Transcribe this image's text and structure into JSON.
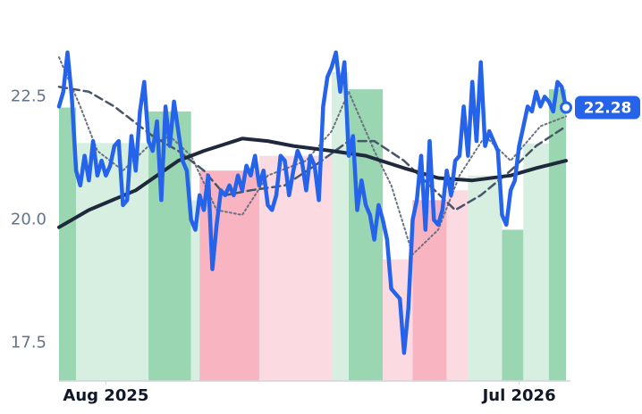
{
  "chart_data": {
    "type": "line",
    "xlim": [
      0,
      119
    ],
    "xticks": [
      {
        "value": 11,
        "label": "Aug 2025"
      },
      {
        "value": 108,
        "label": "Jul 2026"
      }
    ],
    "ylim": [
      16.73,
      24.1
    ],
    "yticks": [
      17.5,
      {
        "value": 20,
        "label": "20.0"
      },
      22.5
    ],
    "regions": [
      {
        "start": 0,
        "end": 4,
        "top": 22.28,
        "color": "#9bd6b2"
      },
      {
        "start": 4,
        "end": 21,
        "top": 21.56,
        "color": "#d6efe0"
      },
      {
        "start": 21,
        "end": 31,
        "top": 22.2,
        "color": "#9bd6b2"
      },
      {
        "start": 31,
        "end": 33,
        "top": 20.4,
        "color": "#d6efe0"
      },
      {
        "start": 33,
        "end": 47,
        "top": 21.0,
        "color": "#f9b4c2"
      },
      {
        "start": 47,
        "end": 64,
        "top": 21.3,
        "color": "#fcdae2"
      },
      {
        "start": 64,
        "end": 68,
        "top": 23.0,
        "color": "#d6efe0"
      },
      {
        "start": 68,
        "end": 76,
        "top": 22.65,
        "color": "#9bd6b2"
      },
      {
        "start": 76,
        "end": 83,
        "top": 19.2,
        "color": "#fcdae2"
      },
      {
        "start": 83,
        "end": 91,
        "top": 20.4,
        "color": "#f9b4c2"
      },
      {
        "start": 91,
        "end": 96,
        "top": 20.6,
        "color": "#fcdae2"
      },
      {
        "start": 96,
        "end": 104,
        "top": 20.9,
        "color": "#d6efe0"
      },
      {
        "start": 104,
        "end": 109,
        "top": 19.8,
        "color": "#9bd6b2"
      },
      {
        "start": 109,
        "end": 115,
        "top": 21.55,
        "color": "#d6efe0"
      },
      {
        "start": 115,
        "end": 119,
        "top": 22.65,
        "color": "#9bd6b2"
      }
    ],
    "series": [
      {
        "style": "dotted",
        "color": "#6b7280",
        "x": [
          0,
          5,
          9,
          15,
          21,
          26,
          31,
          37,
          43,
          49,
          58,
          64,
          68,
          74,
          78,
          83,
          89,
          94,
          100,
          106,
          113,
          119
        ],
        "values": [
          23.3,
          22.3,
          21.4,
          21.0,
          21.5,
          21.7,
          21.3,
          20.2,
          20.1,
          20.9,
          21.2,
          21.8,
          22.6,
          21.4,
          20.7,
          19.3,
          19.8,
          20.9,
          21.7,
          21.2,
          21.9,
          22.1
        ]
      },
      {
        "style": "dashed",
        "color": "#475569",
        "x": [
          0,
          7,
          13,
          22,
          28,
          34,
          39,
          45,
          53,
          60,
          68,
          74,
          81,
          87,
          93,
          99,
          106,
          112,
          119
        ],
        "values": [
          22.7,
          22.6,
          22.3,
          21.7,
          21.4,
          21.0,
          20.5,
          20.6,
          20.7,
          21.1,
          21.6,
          21.6,
          21.2,
          20.7,
          20.2,
          20.5,
          21.0,
          21.5,
          21.9
        ]
      },
      {
        "style": "thick",
        "color": "#1e293b",
        "x": [
          0,
          7,
          18,
          28,
          34,
          43,
          49,
          55,
          64,
          72,
          81,
          89,
          97,
          106,
          112,
          119
        ],
        "values": [
          19.85,
          20.2,
          20.6,
          21.2,
          21.4,
          21.65,
          21.6,
          21.5,
          21.4,
          21.3,
          21.05,
          20.85,
          20.8,
          20.9,
          21.05,
          21.2
        ]
      },
      {
        "style": "price",
        "color": "#2563eb",
        "values": [
          22.3,
          22.6,
          23.4,
          22.5,
          21.0,
          20.7,
          21.3,
          20.8,
          21.6,
          20.9,
          21.2,
          20.9,
          21.1,
          21.5,
          21.6,
          20.3,
          20.4,
          21.7,
          21.0,
          22.2,
          22.8,
          21.6,
          21.4,
          22.0,
          20.4,
          22.3,
          21.5,
          22.4,
          21.8,
          21.2,
          21.0,
          20.0,
          19.8,
          20.5,
          20.2,
          20.9,
          19.0,
          19.9,
          20.6,
          20.5,
          20.7,
          20.5,
          20.9,
          20.6,
          21.1,
          20.9,
          21.3,
          20.7,
          21.0,
          20.3,
          20.2,
          20.5,
          21.3,
          21.2,
          20.5,
          21.0,
          21.4,
          21.2,
          20.6,
          21.3,
          21.1,
          20.4,
          22.3,
          22.9,
          23.1,
          23.4,
          22.6,
          23.2,
          21.3,
          21.7,
          20.2,
          20.8,
          20.3,
          20.1,
          19.6,
          20.3,
          20.0,
          19.6,
          18.6,
          18.5,
          18.4,
          17.3,
          18.2,
          20.0,
          20.4,
          21.3,
          19.8,
          21.6,
          20.0,
          19.9,
          20.2,
          21.0,
          20.5,
          21.2,
          21.3,
          22.3,
          21.3,
          22.8,
          21.6,
          23.2,
          21.5,
          21.8,
          21.6,
          21.4,
          20.1,
          19.9,
          20.6,
          20.8,
          21.5,
          21.9,
          22.3,
          22.2,
          22.6,
          22.3,
          22.5,
          22.4,
          22.2,
          22.8,
          22.7,
          22.28
        ]
      }
    ]
  }
}
